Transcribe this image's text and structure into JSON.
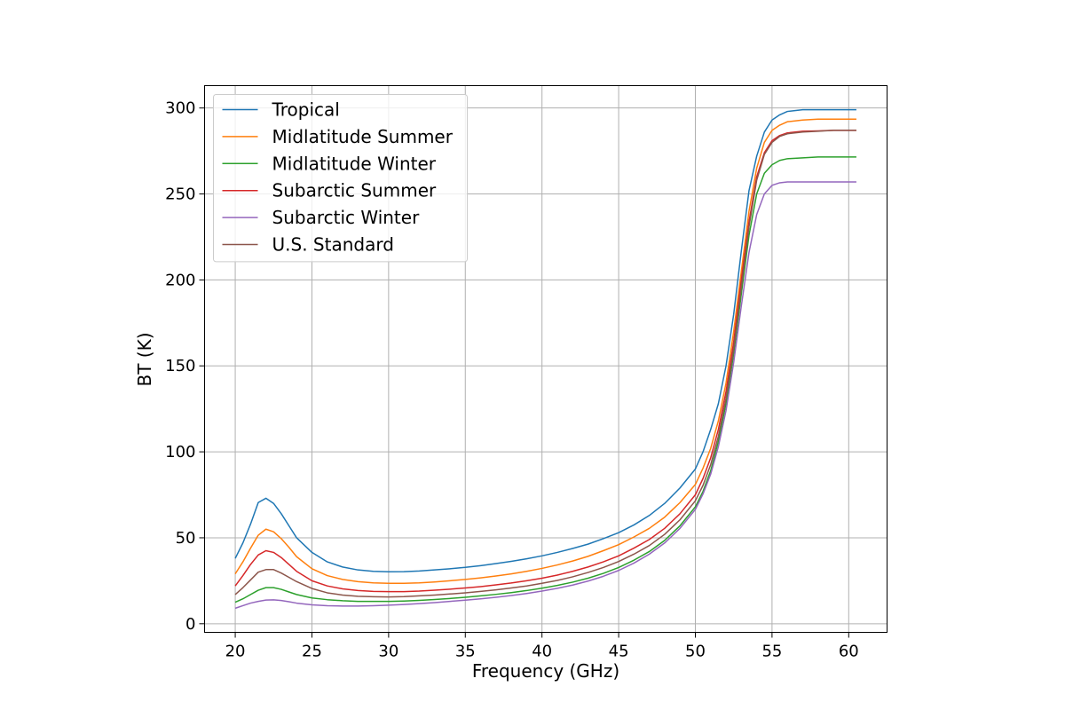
{
  "chart_data": {
    "type": "line",
    "title": "",
    "xlabel": "Frequency (GHz)",
    "ylabel": "BT (K)",
    "xlim": [
      18,
      62.5
    ],
    "ylim": [
      -5,
      313
    ],
    "xticks": [
      20,
      25,
      30,
      35,
      40,
      45,
      50,
      55,
      60
    ],
    "yticks": [
      0,
      50,
      100,
      150,
      200,
      250,
      300
    ],
    "grid": true,
    "legend": "upper-left",
    "x": [
      20,
      20.5,
      21,
      21.5,
      22,
      22.5,
      23,
      23.5,
      24,
      25,
      26,
      27,
      28,
      29,
      30,
      31,
      32,
      33,
      34,
      35,
      36,
      37,
      38,
      39,
      40,
      41,
      42,
      43,
      44,
      45,
      46,
      47,
      48,
      49,
      50,
      50.5,
      51,
      51.5,
      52,
      52.5,
      53,
      53.5,
      54,
      54.5,
      55,
      55.5,
      56,
      57,
      58,
      59,
      60,
      60.5
    ],
    "series": [
      {
        "name": "Tropical",
        "color": "#1f77b4",
        "values": [
          38,
          47,
          58,
          70.5,
          73,
          70,
          64,
          57,
          50,
          41.5,
          36,
          33,
          31.3,
          30.5,
          30.2,
          30.3,
          30.7,
          31.3,
          32,
          32.8,
          33.8,
          35,
          36.3,
          37.8,
          39.5,
          41.5,
          43.8,
          46.3,
          49.5,
          53,
          57.5,
          63,
          70,
          79,
          90,
          100,
          113,
          128,
          150,
          180,
          217,
          252,
          272,
          286,
          293,
          296,
          298,
          299,
          299,
          299,
          299,
          299
        ]
      },
      {
        "name": "Midlatitude Summer",
        "color": "#ff7f0e",
        "values": [
          29,
          36,
          44,
          51.5,
          55,
          53.5,
          49.5,
          44.5,
          39,
          32,
          28,
          25.8,
          24.5,
          23.8,
          23.5,
          23.5,
          23.8,
          24.3,
          25,
          25.8,
          26.7,
          27.8,
          29,
          30.5,
          32.2,
          34.2,
          36.5,
          39.2,
          42.5,
          46,
          50.5,
          55.5,
          62,
          70.5,
          81,
          90.5,
          102,
          118,
          140,
          170,
          205,
          240,
          265,
          280,
          287,
          290,
          292,
          293,
          293.5,
          293.5,
          293.5,
          293.5
        ]
      },
      {
        "name": "Midlatitude Winter",
        "color": "#2ca02c",
        "values": [
          12.5,
          14.5,
          17,
          19.5,
          21,
          21,
          20,
          18.5,
          17,
          15,
          14,
          13.4,
          13,
          13,
          13,
          13.2,
          13.6,
          14.1,
          14.7,
          15.4,
          16.2,
          17.1,
          18.1,
          19.3,
          20.7,
          22.3,
          24.2,
          26.5,
          29.3,
          32.7,
          37,
          42,
          48.5,
          57,
          68,
          77,
          89,
          106,
          128,
          157,
          192,
          226,
          250,
          262,
          267,
          269.5,
          270.5,
          271,
          271.5,
          271.5,
          271.5,
          271.5
        ]
      },
      {
        "name": "Subarctic Summer",
        "color": "#d62728",
        "values": [
          22,
          28,
          34.5,
          40,
          42.5,
          41.5,
          38.5,
          34.5,
          30.5,
          25,
          22,
          20.3,
          19.3,
          18.8,
          18.7,
          18.7,
          19,
          19.5,
          20.1,
          20.8,
          21.6,
          22.6,
          23.7,
          25,
          26.5,
          28.3,
          30.5,
          33,
          36,
          39.5,
          44,
          49,
          55.5,
          64,
          75,
          84.5,
          96.5,
          113,
          135,
          164,
          200,
          234,
          260,
          274,
          281,
          284,
          285.5,
          286.5,
          286.7,
          287,
          287,
          287
        ]
      },
      {
        "name": "Subarctic Winter",
        "color": "#9467bd",
        "values": [
          9,
          10.5,
          12,
          13,
          13.8,
          13.9,
          13.5,
          12.8,
          12,
          11,
          10.5,
          10.3,
          10.3,
          10.5,
          10.8,
          11.2,
          11.7,
          12.3,
          13,
          13.7,
          14.5,
          15.4,
          16.4,
          17.6,
          19,
          20.6,
          22.5,
          24.8,
          27.6,
          31,
          35.3,
          40.5,
          47,
          55.5,
          66.5,
          75.5,
          87,
          103,
          124,
          152,
          185,
          216,
          238,
          250,
          255,
          256.5,
          257,
          257,
          257,
          257,
          257,
          257
        ]
      },
      {
        "name": "U.S. Standard",
        "color": "#8c564b",
        "values": [
          17,
          21,
          25.5,
          30,
          31.5,
          31.5,
          29.5,
          27,
          24.5,
          20.5,
          18,
          16.7,
          16,
          15.7,
          15.6,
          15.8,
          16.2,
          16.7,
          17.3,
          18,
          18.8,
          19.7,
          20.8,
          22,
          23.5,
          25.2,
          27.3,
          29.8,
          32.7,
          36.2,
          40.5,
          45.5,
          52,
          60.5,
          71.5,
          80.5,
          92.5,
          109,
          131,
          160,
          196,
          231,
          258,
          273,
          280,
          283.5,
          285,
          286,
          286.5,
          287,
          287,
          287
        ]
      }
    ]
  }
}
